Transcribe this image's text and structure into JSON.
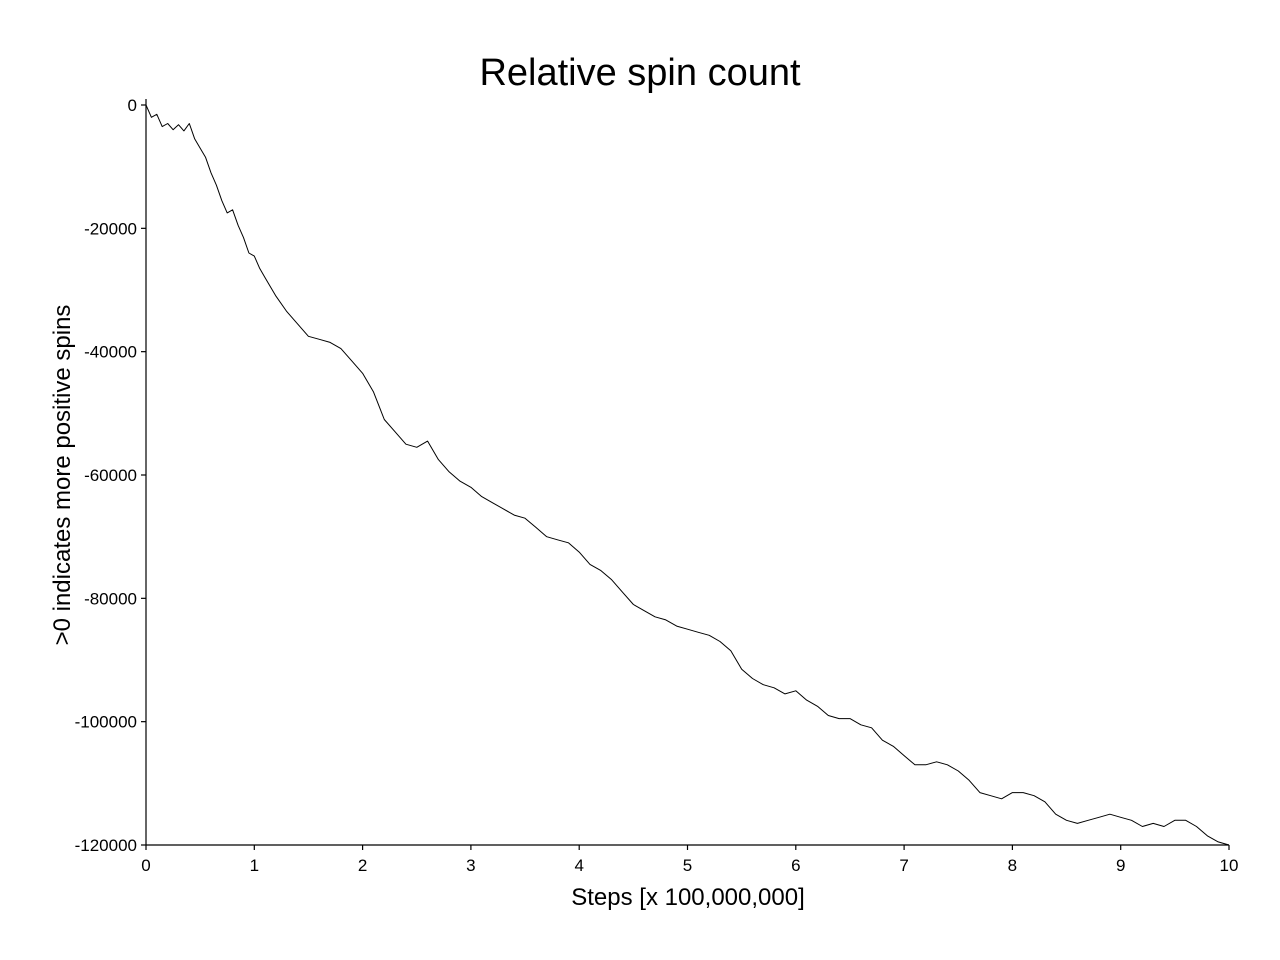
{
  "chart_data": {
    "type": "line",
    "title": "Relative spin count",
    "xlabel": "Steps [x 100,000,000]",
    "ylabel": ">0 indicates more positive spins",
    "xlim": [
      0,
      10
    ],
    "ylim": [
      -120000,
      0
    ],
    "x_ticks": [
      0,
      1,
      2,
      3,
      4,
      5,
      6,
      7,
      8,
      9,
      10
    ],
    "x_tick_labels": [
      "0",
      "1",
      "2",
      "3",
      "4",
      "5",
      "6",
      "7",
      "8",
      "9",
      "10"
    ],
    "y_ticks": [
      0,
      -20000,
      -40000,
      -60000,
      -80000,
      -100000,
      -120000
    ],
    "y_tick_labels": [
      "0",
      "-20000",
      "-40000",
      "-60000",
      "-80000",
      "-100000",
      "-120000"
    ],
    "grid": false,
    "line_color": "#000000",
    "series": [
      {
        "x": [
          0,
          0.05,
          0.1,
          0.15,
          0.2,
          0.25,
          0.3,
          0.35,
          0.4,
          0.45,
          0.5,
          0.55,
          0.6,
          0.65,
          0.7,
          0.75,
          0.8,
          0.85,
          0.9,
          0.95,
          1.0,
          1.05,
          1.1,
          1.2,
          1.3,
          1.4,
          1.5,
          1.6,
          1.7,
          1.8,
          1.9,
          2.0,
          2.1,
          2.2,
          2.3,
          2.4,
          2.5,
          2.6,
          2.7,
          2.8,
          2.9,
          3.0,
          3.1,
          3.2,
          3.3,
          3.4,
          3.5,
          3.6,
          3.7,
          3.8,
          3.9,
          4.0,
          4.1,
          4.2,
          4.3,
          4.4,
          4.5,
          4.6,
          4.7,
          4.8,
          4.9,
          5.0,
          5.1,
          5.2,
          5.3,
          5.4,
          5.5,
          5.6,
          5.7,
          5.8,
          5.9,
          6.0,
          6.1,
          6.2,
          6.3,
          6.4,
          6.5,
          6.6,
          6.7,
          6.8,
          6.9,
          7.0,
          7.1,
          7.2,
          7.3,
          7.4,
          7.5,
          7.6,
          7.7,
          7.8,
          7.9,
          8.0,
          8.1,
          8.2,
          8.3,
          8.4,
          8.5,
          8.6,
          8.7,
          8.8,
          8.9,
          9.0,
          9.1,
          9.2,
          9.3,
          9.4,
          9.5,
          9.6,
          9.7,
          9.8,
          9.9,
          10.0
        ],
        "y": [
          0,
          -2000,
          -1500,
          -3500,
          -3000,
          -4000,
          -3200,
          -4200,
          -3000,
          -5500,
          -7000,
          -8500,
          -11000,
          -13000,
          -15500,
          -17500,
          -17000,
          -19500,
          -21500,
          -24000,
          -24500,
          -26500,
          -28000,
          -31000,
          -33500,
          -35500,
          -37500,
          -38000,
          -38500,
          -39500,
          -41500,
          -43500,
          -46500,
          -51000,
          -53000,
          -55000,
          -55500,
          -54500,
          -57500,
          -59500,
          -61000,
          -62000,
          -63500,
          -64500,
          -65500,
          -66500,
          -67000,
          -68500,
          -70000,
          -70500,
          -71000,
          -72500,
          -74500,
          -75500,
          -77000,
          -79000,
          -81000,
          -82000,
          -83000,
          -83500,
          -84500,
          -85000,
          -85500,
          -86000,
          -87000,
          -88500,
          -91500,
          -93000,
          -94000,
          -94500,
          -95500,
          -95000,
          -96500,
          -97500,
          -99000,
          -99500,
          -99500,
          -100500,
          -101000,
          -103000,
          -104000,
          -105500,
          -107000,
          -107000,
          -106500,
          -107000,
          -108000,
          -109500,
          -111500,
          -112000,
          -112500,
          -111500,
          -111500,
          -112000,
          -113000,
          -115000,
          -116000,
          -116500,
          -116000,
          -115500,
          -115000,
          -115500,
          -116000,
          -117000,
          -116500,
          -117000,
          -116000,
          -116000,
          -117000,
          -118500,
          -119500,
          -120000
        ]
      }
    ]
  }
}
